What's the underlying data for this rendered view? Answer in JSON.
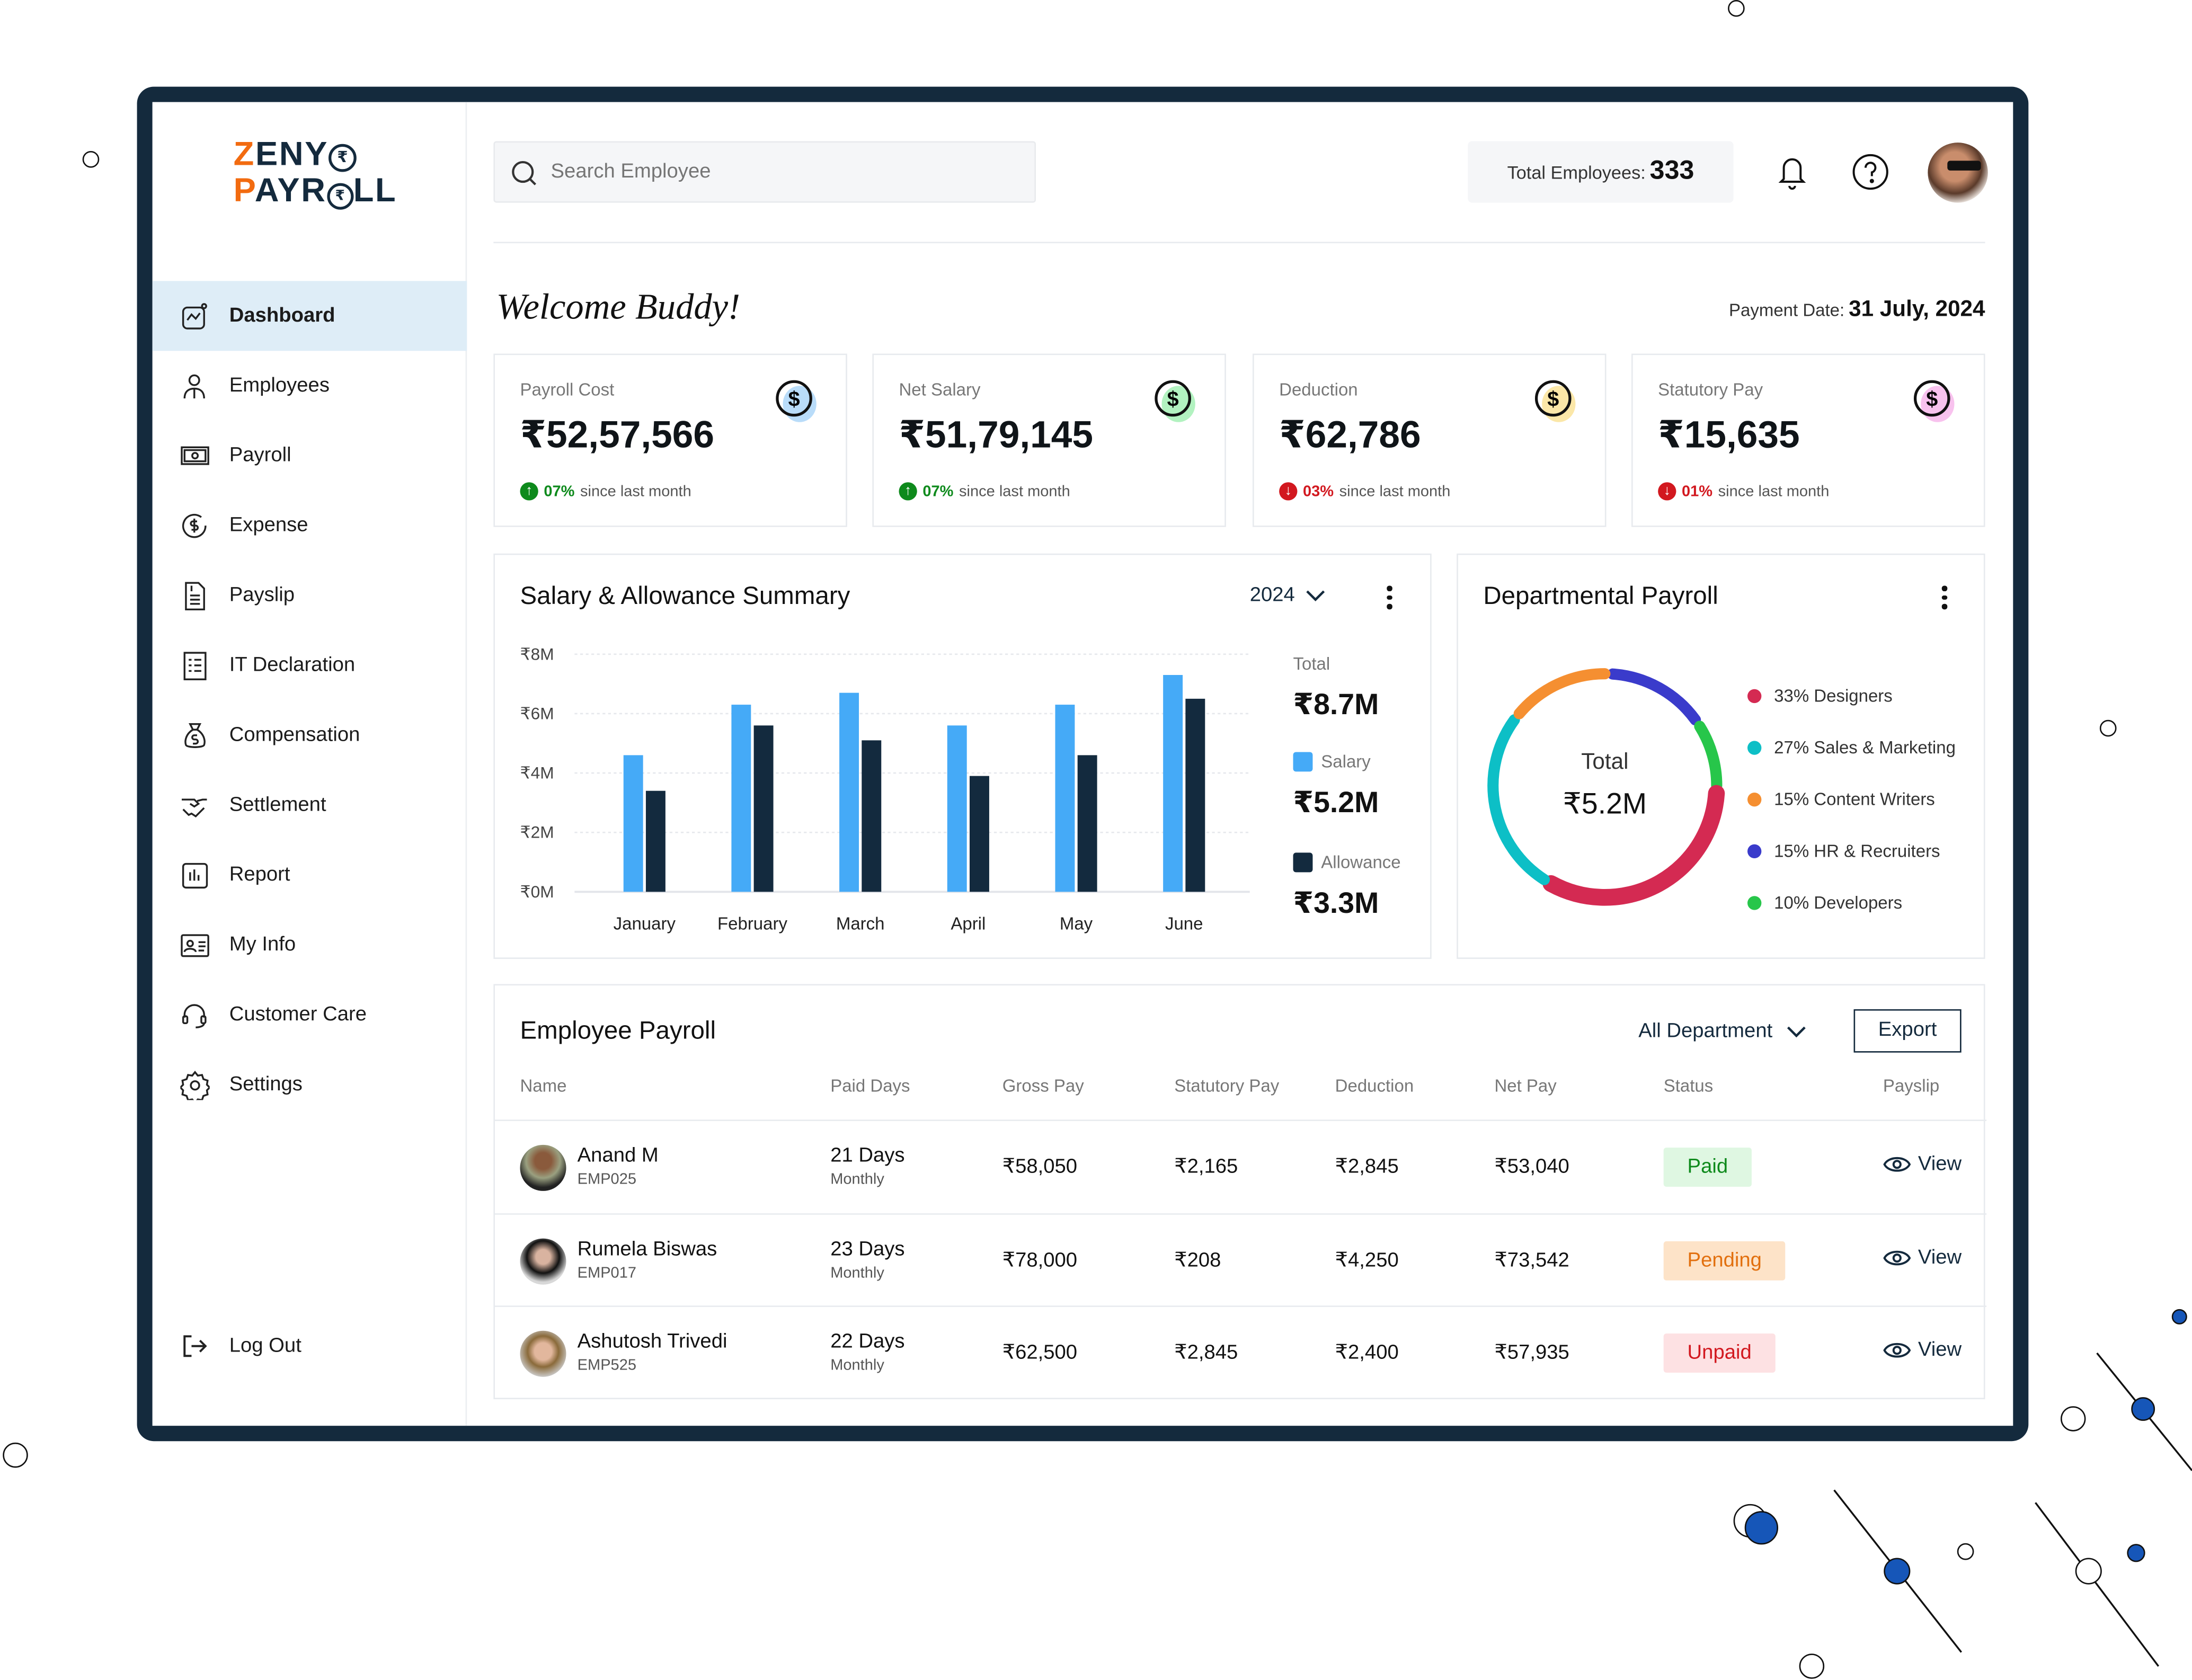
{
  "brand": {
    "line1": "ZENY",
    "line2": "PAYR",
    "line2_end": "LL",
    "accent": "#f26b10",
    "dark": "#142a3d"
  },
  "sidebar": {
    "items": [
      {
        "label": "Dashboard",
        "icon": "dashboard-icon",
        "active": true
      },
      {
        "label": "Employees",
        "icon": "employees-icon"
      },
      {
        "label": "Payroll",
        "icon": "payroll-icon"
      },
      {
        "label": "Expense",
        "icon": "expense-icon"
      },
      {
        "label": "Payslip",
        "icon": "payslip-icon"
      },
      {
        "label": "IT Declaration",
        "icon": "it-declaration-icon"
      },
      {
        "label": "Compensation",
        "icon": "compensation-icon"
      },
      {
        "label": "Settlement",
        "icon": "settlement-icon"
      },
      {
        "label": "Report",
        "icon": "report-icon"
      },
      {
        "label": "My Info",
        "icon": "my-info-icon"
      },
      {
        "label": "Customer Care",
        "icon": "customer-care-icon"
      },
      {
        "label": "Settings",
        "icon": "gear-icon"
      }
    ],
    "logout": "Log Out"
  },
  "header": {
    "search_placeholder": "Search Employee",
    "total_label": "Total Employees:",
    "total_value": "333"
  },
  "welcome": {
    "title": "Welcome Buddy!",
    "payment_label": "Payment Date:",
    "payment_date": "31 July, 2024"
  },
  "stats": [
    {
      "title": "Payroll Cost",
      "value": "₹52,57,566",
      "pct": "07%",
      "trend": "up",
      "since": "since last month",
      "color": "#b9dcf9"
    },
    {
      "title": "Net Salary",
      "value": "₹51,79,145",
      "pct": "07%",
      "trend": "up",
      "since": "since last month",
      "color": "#b2f2c0"
    },
    {
      "title": "Deduction",
      "value": "₹62,786",
      "pct": "03%",
      "trend": "down",
      "since": "since last month",
      "color": "#fbe7a8"
    },
    {
      "title": "Statutory Pay",
      "value": "₹15,635",
      "pct": "01%",
      "trend": "down",
      "since": "since last month",
      "color": "#f8c2ee"
    }
  ],
  "chart_data": [
    {
      "type": "bar",
      "title": "Salary & Allowance Summary",
      "year": "2024",
      "categories": [
        "January",
        "February",
        "March",
        "April",
        "May",
        "June"
      ],
      "yticks": [
        "₹0M",
        "₹2M",
        "₹4M",
        "₹6M",
        "₹8M"
      ],
      "ylim": [
        0,
        8
      ],
      "grid": true,
      "series": [
        {
          "name": "Salary",
          "color": "#45aaf7",
          "values": [
            4.6,
            6.3,
            6.7,
            5.6,
            6.3,
            7.3
          ]
        },
        {
          "name": "Allowance",
          "color": "#132a3e",
          "values": [
            3.4,
            5.6,
            5.1,
            3.9,
            4.6,
            6.5
          ]
        }
      ],
      "summary": {
        "total_label": "Total",
        "total": "₹8.7M",
        "salary_label": "Salary",
        "salary": "₹5.2M",
        "allowance_label": "Allowance",
        "allowance": "₹3.3M"
      }
    },
    {
      "type": "pie",
      "title": "Departmental Payroll",
      "center_label": "Total",
      "center_value": "₹5.2M",
      "slices": [
        {
          "label": "33% Designers",
          "value": 33,
          "color": "#d42a52"
        },
        {
          "label": "27% Sales & Marketing",
          "value": 27,
          "color": "#0dbfc6"
        },
        {
          "label": "15% Content Writers",
          "value": 15,
          "color": "#f58f31"
        },
        {
          "label": "15% HR & Recruiters",
          "value": 15,
          "color": "#3a3bcb"
        },
        {
          "label": "10% Developers",
          "value": 10,
          "color": "#27c64a"
        }
      ]
    }
  ],
  "payroll": {
    "title": "Employee Payroll",
    "filter": "All Department",
    "export": "Export",
    "columns": [
      "Name",
      "Paid Days",
      "Gross Pay",
      "Statutory Pay",
      "Deduction",
      "Net Pay",
      "Status",
      "Payslip"
    ],
    "rows": [
      {
        "name": "Anand M",
        "id": "EMP025",
        "days": "21 Days",
        "period": "Monthly",
        "gross": "₹58,050",
        "statutory": "₹2,165",
        "deduction": "₹2,845",
        "net": "₹53,040",
        "status": "Paid",
        "view": "View"
      },
      {
        "name": "Rumela Biswas",
        "id": "EMP017",
        "days": "23 Days",
        "period": "Monthly",
        "gross": "₹78,000",
        "statutory": "₹208",
        "deduction": "₹4,250",
        "net": "₹73,542",
        "status": "Pending",
        "view": "View"
      },
      {
        "name": "Ashutosh Trivedi",
        "id": "EMP525",
        "days": "22 Days",
        "period": "Monthly",
        "gross": "₹62,500",
        "statutory": "₹2,845",
        "deduction": "₹2,400",
        "net": "₹57,935",
        "status": "Unpaid",
        "view": "View"
      }
    ]
  }
}
